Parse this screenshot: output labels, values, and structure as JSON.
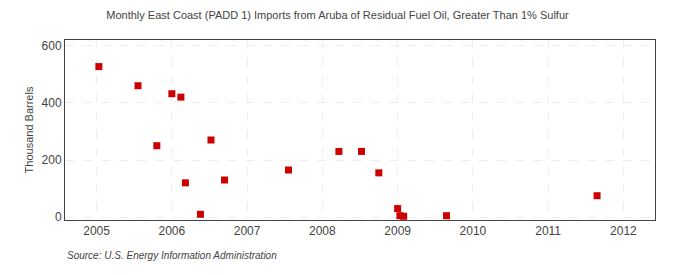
{
  "chart_data": {
    "type": "scatter",
    "title": "Monthly East Coast (PADD 1) Imports from Aruba of Residual Fuel Oil, Greater Than 1% Sulfur",
    "ylabel": "Thousand Barrels",
    "source": "Source: U.S. Energy Information Administration",
    "x": [
      2005.03,
      2005.55,
      2005.8,
      2006.0,
      2006.12,
      2006.18,
      2006.38,
      2006.52,
      2006.7,
      2007.55,
      2008.22,
      2008.52,
      2008.75,
      2009.0,
      2009.03,
      2009.08,
      2009.65,
      2011.65
    ],
    "values": [
      527,
      460,
      250,
      432,
      420,
      120,
      10,
      270,
      130,
      165,
      230,
      230,
      155,
      30,
      5,
      3,
      5,
      75
    ],
    "color": "#cc0000",
    "marker": "square",
    "xlim": [
      2004.58,
      2012.42
    ],
    "ylim": [
      -10,
      620
    ],
    "xticks": [
      2005,
      2006,
      2007,
      2008,
      2009,
      2010,
      2011,
      2012
    ],
    "yticks": [
      0,
      200,
      400,
      600
    ],
    "grid": true
  }
}
